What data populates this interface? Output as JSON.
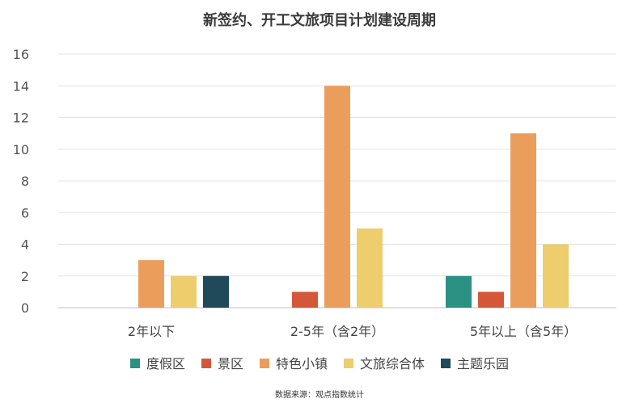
{
  "chart_data": {
    "type": "bar",
    "title": "新签约、开工文旅项目计划建设周期",
    "source": "数据来源：观点指数统计",
    "categories": [
      "2年以下",
      "2-5年（含2年）",
      "5年以上（含5年）"
    ],
    "ylim": [
      0,
      16
    ],
    "yticks": [
      0,
      2,
      4,
      6,
      8,
      10,
      12,
      14,
      16
    ],
    "grid": true,
    "legend_position": "bottom",
    "series": [
      {
        "name": "度假区",
        "color": "#2a9183",
        "values": [
          0,
          0,
          2
        ]
      },
      {
        "name": "景区",
        "color": "#d4573a",
        "values": [
          0,
          1,
          1
        ]
      },
      {
        "name": "特色小镇",
        "color": "#eb9e5c",
        "values": [
          3,
          14,
          11
        ]
      },
      {
        "name": "文旅综合体",
        "color": "#edcd6c",
        "values": [
          2,
          5,
          4
        ]
      },
      {
        "name": "主题乐园",
        "color": "#1e4a5a",
        "values": [
          2,
          0,
          0
        ]
      }
    ]
  }
}
